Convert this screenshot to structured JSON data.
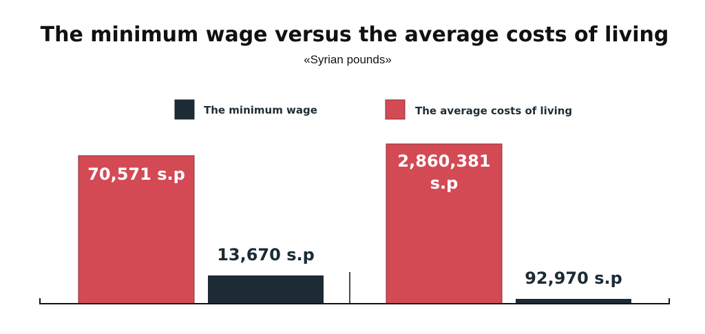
{
  "chart_data": {
    "type": "bar",
    "title": "The minimum wage versus the average costs of living",
    "subtitle": "«Syrian pounds»",
    "xlabel": "",
    "ylabel": "",
    "grid": false,
    "legend_position": "top",
    "series": [
      {
        "name": "The minimum wage",
        "color": "#1c2b34"
      },
      {
        "name": "The average costs of living",
        "color": "#d34a55"
      }
    ],
    "groups": [
      {
        "bars": [
          {
            "series": "The average costs of living",
            "value": 70571,
            "label": "70,571 s.p"
          },
          {
            "series": "The minimum wage",
            "value": 13670,
            "label": "13,670 s.p"
          }
        ]
      },
      {
        "bars": [
          {
            "series": "The average costs of living",
            "value": 2860381,
            "label": "2,860,381 s.p"
          },
          {
            "series": "The minimum wage",
            "value": 92970,
            "label": "92,970 s.p"
          }
        ]
      }
    ]
  }
}
